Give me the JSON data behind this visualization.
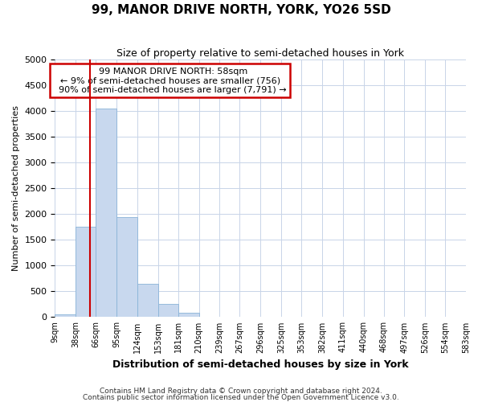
{
  "title": "99, MANOR DRIVE NORTH, YORK, YO26 5SD",
  "subtitle": "Size of property relative to semi-detached houses in York",
  "xlabel": "Distribution of semi-detached houses by size in York",
  "ylabel": "Number of semi-detached properties",
  "footnote1": "Contains HM Land Registry data © Crown copyright and database right 2024.",
  "footnote2": "Contains public sector information licensed under the Open Government Licence v3.0.",
  "property_label": "99 MANOR DRIVE NORTH: 58sqm",
  "pct_smaller": 9,
  "pct_larger": 90,
  "n_smaller": 756,
  "n_larger": 7791,
  "bin_labels": [
    "9sqm",
    "38sqm",
    "66sqm",
    "95sqm",
    "124sqm",
    "153sqm",
    "181sqm",
    "210sqm",
    "239sqm",
    "267sqm",
    "296sqm",
    "325sqm",
    "353sqm",
    "382sqm",
    "411sqm",
    "440sqm",
    "468sqm",
    "497sqm",
    "526sqm",
    "554sqm",
    "583sqm"
  ],
  "bin_edges": [
    9,
    38,
    66,
    95,
    124,
    153,
    181,
    210,
    239,
    267,
    296,
    325,
    353,
    382,
    411,
    440,
    468,
    497,
    526,
    554,
    583
  ],
  "bar_heights": [
    50,
    1750,
    4050,
    1950,
    650,
    250,
    80,
    0,
    0,
    0,
    0,
    0,
    0,
    0,
    0,
    0,
    0,
    0,
    0,
    0
  ],
  "bar_color": "#c8d8ee",
  "bar_edge_color": "#8ab4d8",
  "red_line_x": 58,
  "ylim": [
    0,
    5000
  ],
  "yticks": [
    0,
    500,
    1000,
    1500,
    2000,
    2500,
    3000,
    3500,
    4000,
    4500,
    5000
  ],
  "annotation_box_facecolor": "#ffffff",
  "annotation_box_edgecolor": "#cc0000",
  "vline_color": "#cc0000",
  "grid_color": "#c8d4e8",
  "bg_color": "#ffffff",
  "plot_bg_color": "#ffffff"
}
